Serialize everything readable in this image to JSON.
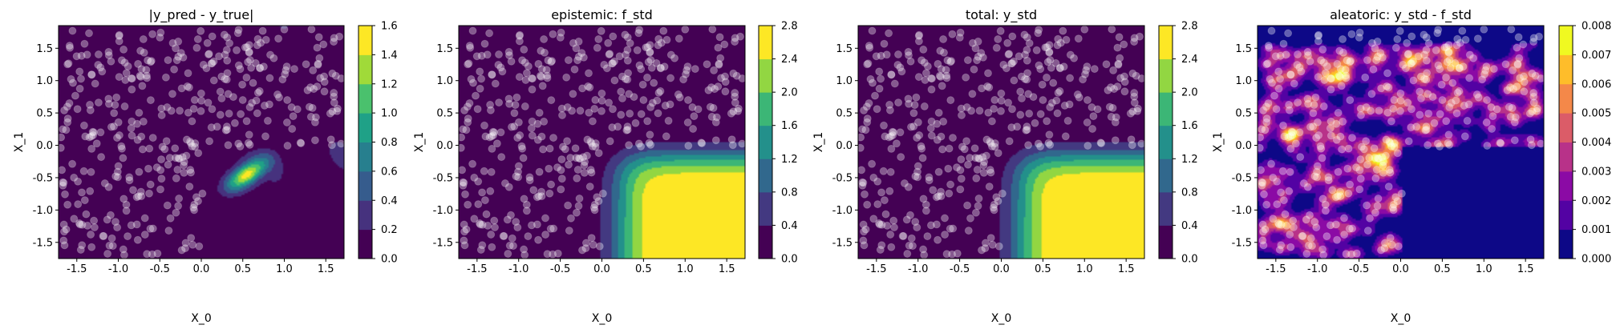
{
  "chart_data": [
    {
      "type": "contour",
      "title": "|y_pred - y_true|",
      "xlabel": "X_0",
      "ylabel": "X_1",
      "xlim": [
        -1.72,
        1.72
      ],
      "ylim": [
        -1.75,
        1.85
      ],
      "xticks": [
        "-1.5",
        "-1.0",
        "-0.5",
        "0.0",
        "0.5",
        "1.0",
        "1.5"
      ],
      "yticks": [
        "-1.5",
        "-1.0",
        "-0.5",
        "0.0",
        "0.5",
        "1.0",
        "1.5"
      ],
      "colormap": "viridis",
      "colorbar": {
        "levels": [
          0.0,
          0.2,
          0.4,
          0.6,
          0.8,
          1.0,
          1.2,
          1.4,
          1.6
        ],
        "ticks": [
          "0.0",
          "0.2",
          "0.4",
          "0.6",
          "0.8",
          "1.0",
          "1.2",
          "1.4",
          "1.6"
        ]
      },
      "field": {
        "kind": "error",
        "peak_center": [
          0.55,
          -0.45
        ],
        "peak_value": 1.5
      }
    },
    {
      "type": "contour",
      "title": "epistemic: f_std",
      "xlabel": "X_0",
      "ylabel": "X_1",
      "xlim": [
        -1.72,
        1.72
      ],
      "ylim": [
        -1.75,
        1.85
      ],
      "xticks": [
        "-1.5",
        "-1.0",
        "-0.5",
        "0.0",
        "0.5",
        "1.0",
        "1.5"
      ],
      "yticks": [
        "-1.5",
        "-1.0",
        "-0.5",
        "0.0",
        "0.5",
        "1.0",
        "1.5"
      ],
      "colormap": "viridis",
      "colorbar": {
        "levels": [
          0.0,
          0.4,
          0.8,
          1.2,
          1.6,
          2.0,
          2.4,
          2.8
        ],
        "ticks": [
          "0.0",
          "0.4",
          "0.8",
          "1.2",
          "1.6",
          "2.0",
          "2.4",
          "2.8"
        ]
      },
      "field": {
        "kind": "std",
        "uncovered_region": "x_0 > 0, x_1 < 0",
        "max_value": 2.8
      }
    },
    {
      "type": "contour",
      "title": "total: y_std",
      "xlabel": "X_0",
      "ylabel": "X_1",
      "xlim": [
        -1.72,
        1.72
      ],
      "ylim": [
        -1.75,
        1.85
      ],
      "xticks": [
        "-1.5",
        "-1.0",
        "-0.5",
        "0.0",
        "0.5",
        "1.0",
        "1.5"
      ],
      "yticks": [
        "-1.5",
        "-1.0",
        "-0.5",
        "0.0",
        "0.5",
        "1.0",
        "1.5"
      ],
      "colormap": "viridis",
      "colorbar": {
        "levels": [
          0.0,
          0.4,
          0.8,
          1.2,
          1.6,
          2.0,
          2.4,
          2.8
        ],
        "ticks": [
          "0.0",
          "0.4",
          "0.8",
          "1.2",
          "1.6",
          "2.0",
          "2.4",
          "2.8"
        ]
      },
      "field": {
        "kind": "std",
        "uncovered_region": "x_0 > 0, x_1 < 0",
        "max_value": 2.8
      }
    },
    {
      "type": "contour",
      "title": "aleatoric: y_std - f_std",
      "xlabel": "X_0",
      "ylabel": "X_1",
      "xlim": [
        -1.72,
        1.72
      ],
      "ylim": [
        -1.75,
        1.85
      ],
      "xticks": [
        "-1.5",
        "-1.0",
        "-0.5",
        "0.0",
        "0.5",
        "1.0",
        "1.5"
      ],
      "yticks": [
        "-1.5",
        "-1.0",
        "-0.5",
        "0.0",
        "0.5",
        "1.0",
        "1.5"
      ],
      "colormap": "plasma",
      "colorbar": {
        "levels": [
          0.0,
          0.001,
          0.002,
          0.003,
          0.004,
          0.005,
          0.006,
          0.007,
          0.008
        ],
        "ticks": [
          "0.000",
          "0.001",
          "0.002",
          "0.003",
          "0.004",
          "0.005",
          "0.006",
          "0.007",
          "0.008"
        ]
      },
      "field": {
        "kind": "density",
        "max_value": 0.008
      }
    }
  ],
  "training_points": {
    "count": 400,
    "x_range": [
      -1.7,
      1.7
    ],
    "y_range": [
      -1.7,
      1.8
    ],
    "excluded_region": "x_0 > 0 and x_1 < 0"
  },
  "colors": {
    "viridis": [
      "#440154",
      "#46327e",
      "#365c8d",
      "#277f8e",
      "#1fa187",
      "#4ac16d",
      "#a0da39",
      "#fde725"
    ],
    "plasma": [
      "#0d0887",
      "#5302a3",
      "#8b0aa5",
      "#b83289",
      "#db5c68",
      "#f48849",
      "#febd2a",
      "#f0f921"
    ],
    "point_fill": "#ffffff",
    "point_opacity": 0.35
  }
}
